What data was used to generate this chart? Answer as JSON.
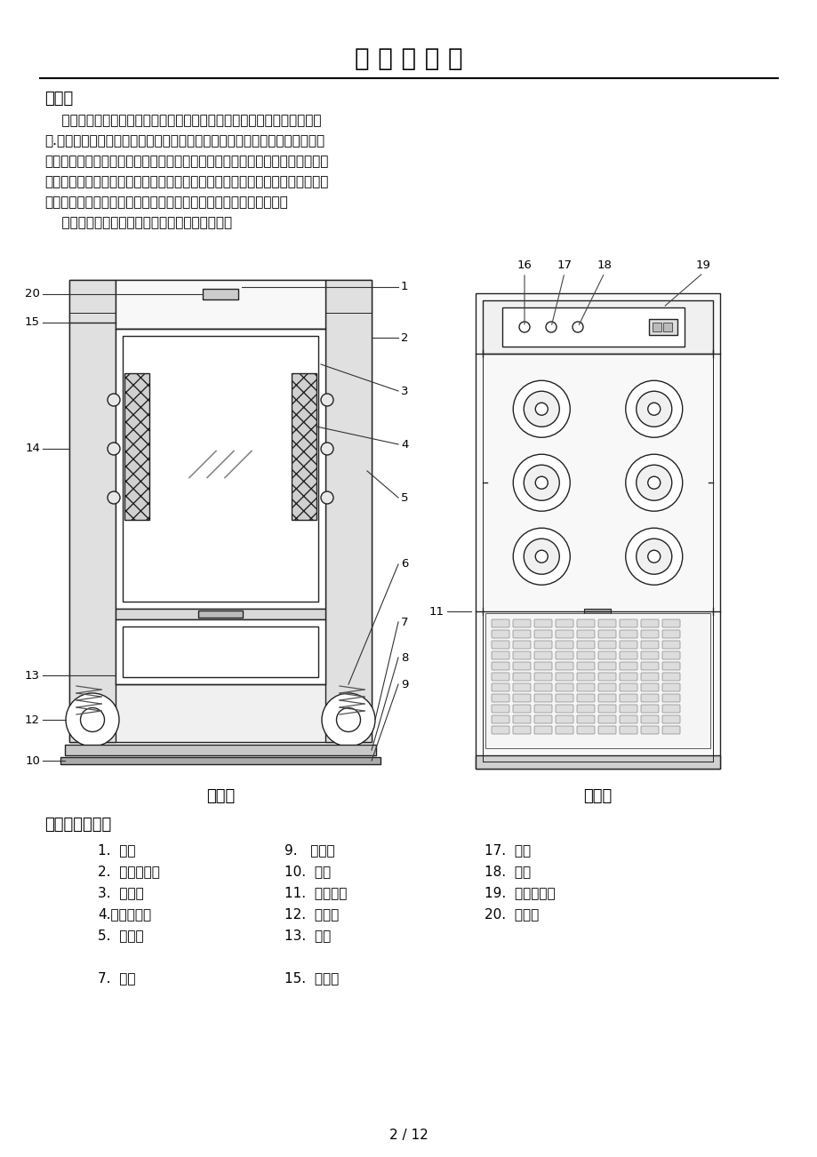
{
  "title": "产 品 说 明 书",
  "intro_heading": "简介：",
  "intro_lines": [
    "    感您购买本公司更衣风淋室，更衣风淋室是防止污染空气进入洁净区的装",
    "置.其原理是利用高速洁净气流吹除进入洁净室人员更衣过程中衣物表面附着的",
    "灰尘颟粒。同时，由于洁净室的两扇门是不同时开启的，可以兼起气闸作用，控",
    "制外部污染空气进入洁净区。本设备广泛应用于半导体元器件生产工厂、生物实",
    "验室、制药厂、食品加工业、电子厂等等一切需要空气净化的场所。",
    "    此手册向您介绍更衣风淋室的结构及使用事项。"
  ],
  "front_view_label": "正视图",
  "side_view_label": "侧视图",
  "parts_heading": "风淋各部分名称",
  "col1": [
    "1.  顶盖",
    "2.  电路控制板",
    "3.  正压筱",
    "4.高效过滤器",
    "5.  右企身",
    "",
    "7.  风机"
  ],
  "col2": [
    "9.   脚蹏板",
    "10.  底盘",
    "11.  光电开关",
    "12.  左企身",
    "13.  风喘",
    "",
    "15.  灯盖板"
  ],
  "col3": [
    "17.  手动",
    "18.  照明",
    "19.  时间显示器",
    "20.  闸门器",
    "",
    "",
    ""
  ],
  "page_num": "2 / 12",
  "bg_color": "#ffffff",
  "text_color": "#000000"
}
